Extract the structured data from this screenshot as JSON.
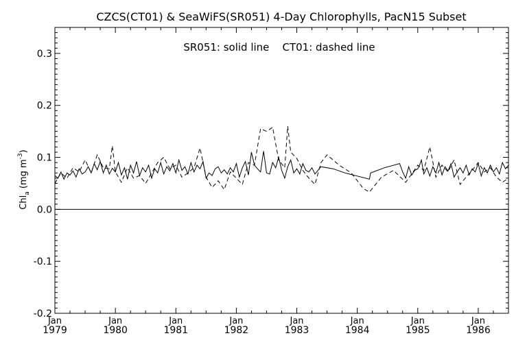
{
  "chart_data": {
    "type": "line",
    "title": "CZCS(CT01) & SeaWiFS(SR051) 4-Day Chlorophylls, PacN15 Subset",
    "annotation": "SR051: solid line    CT01: dashed line",
    "ylabel": {
      "base": "Chl",
      "subscript": "a",
      "units_open": " (mg m",
      "units_sup": "-3",
      "units_close": ")"
    },
    "xlim": [
      1979.0,
      1986.5
    ],
    "ylim": [
      -0.2,
      0.35
    ],
    "yticks": [
      "-0.2",
      "-0.1",
      "0.0",
      "0.1",
      "0.2",
      "0.3"
    ],
    "xticks": [
      {
        "x": 1979,
        "month": "Jan",
        "year": "1979"
      },
      {
        "x": 1980,
        "month": "Jan",
        "year": "1980"
      },
      {
        "x": 1981,
        "month": "Jan",
        "year": "1981"
      },
      {
        "x": 1982,
        "month": "Jan",
        "year": "1982"
      },
      {
        "x": 1983,
        "month": "Jan",
        "year": "1983"
      },
      {
        "x": 1984,
        "month": "Jan",
        "year": "1984"
      },
      {
        "x": 1985,
        "month": "Jan",
        "year": "1985"
      },
      {
        "x": 1986,
        "month": "Jan",
        "year": "1986"
      }
    ],
    "zero_line": 0.0,
    "series": [
      {
        "name": "SR051",
        "style": "solid",
        "color": "#000000",
        "x": [
          1979.0,
          1979.05,
          1979.1,
          1979.15,
          1979.2,
          1979.25,
          1979.3,
          1979.35,
          1979.4,
          1979.45,
          1979.5,
          1979.55,
          1979.6,
          1979.65,
          1979.7,
          1979.75,
          1979.8,
          1979.85,
          1979.9,
          1979.95,
          1980.0,
          1980.05,
          1980.1,
          1980.15,
          1980.2,
          1980.25,
          1980.3,
          1980.35,
          1980.4,
          1980.45,
          1980.5,
          1980.55,
          1980.6,
          1980.65,
          1980.7,
          1980.75,
          1980.8,
          1980.85,
          1980.9,
          1980.95,
          1981.0,
          1981.05,
          1981.1,
          1981.15,
          1981.2,
          1981.25,
          1981.3,
          1981.35,
          1981.4,
          1981.45,
          1981.5,
          1981.55,
          1981.6,
          1981.65,
          1981.7,
          1981.75,
          1981.8,
          1981.85,
          1981.9,
          1981.95,
          1982.0,
          1982.05,
          1982.1,
          1982.15,
          1982.2,
          1982.25,
          1982.3,
          1982.35,
          1982.4,
          1982.45,
          1982.5,
          1982.55,
          1982.6,
          1982.65,
          1982.7,
          1982.75,
          1982.8,
          1982.85,
          1982.9,
          1982.95,
          1983.0,
          1983.05,
          1983.1,
          1983.15,
          1983.2,
          1983.25,
          1983.3,
          1983.4,
          1983.6,
          1983.8,
          1984.0,
          1984.2,
          1984.22,
          1984.45,
          1984.7,
          1984.75,
          1984.8,
          1984.85,
          1984.9,
          1984.95,
          1985.0,
          1985.03,
          1985.06,
          1985.1,
          1985.15,
          1985.2,
          1985.25,
          1985.3,
          1985.35,
          1985.4,
          1985.45,
          1985.5,
          1985.55,
          1985.6,
          1985.65,
          1985.7,
          1985.75,
          1985.8,
          1985.85,
          1985.9,
          1985.95,
          1986.0,
          1986.05,
          1986.1,
          1986.15,
          1986.2,
          1986.25,
          1986.3,
          1986.35,
          1986.4,
          1986.45,
          1986.5
        ],
        "y": [
          0.065,
          0.06,
          0.072,
          0.058,
          0.07,
          0.066,
          0.074,
          0.062,
          0.078,
          0.068,
          0.072,
          0.082,
          0.07,
          0.088,
          0.076,
          0.092,
          0.07,
          0.085,
          0.068,
          0.079,
          0.072,
          0.09,
          0.066,
          0.08,
          0.058,
          0.085,
          0.07,
          0.092,
          0.065,
          0.08,
          0.072,
          0.085,
          0.06,
          0.078,
          0.07,
          0.09,
          0.068,
          0.082,
          0.074,
          0.088,
          0.07,
          0.095,
          0.075,
          0.082,
          0.068,
          0.09,
          0.072,
          0.085,
          0.078,
          0.092,
          0.06,
          0.07,
          0.065,
          0.078,
          0.082,
          0.07,
          0.076,
          0.068,
          0.08,
          0.072,
          0.088,
          0.062,
          0.08,
          0.092,
          0.066,
          0.11,
          0.085,
          0.078,
          0.072,
          0.112,
          0.07,
          0.068,
          0.09,
          0.08,
          0.1,
          0.075,
          0.06,
          0.082,
          0.095,
          0.07,
          0.078,
          0.068,
          0.088,
          0.075,
          0.072,
          0.08,
          0.068,
          0.082,
          0.078,
          0.07,
          0.064,
          0.058,
          0.07,
          0.08,
          0.088,
          0.072,
          0.06,
          0.082,
          0.066,
          0.075,
          0.078,
          0.085,
          0.095,
          0.068,
          0.08,
          0.064,
          0.082,
          0.07,
          0.09,
          0.066,
          0.082,
          0.074,
          0.088,
          0.062,
          0.072,
          0.08,
          0.07,
          0.085,
          0.066,
          0.078,
          0.072,
          0.088,
          0.064,
          0.08,
          0.07,
          0.085,
          0.072,
          0.08,
          0.068,
          0.09,
          0.078,
          0.085
        ]
      },
      {
        "name": "CT01",
        "style": "dashed",
        "color": "#000000",
        "x": [
          1979.0,
          1979.1,
          1979.2,
          1979.3,
          1979.4,
          1979.5,
          1979.6,
          1979.7,
          1979.8,
          1979.9,
          1979.95,
          1980.0,
          1980.1,
          1980.2,
          1980.3,
          1980.4,
          1980.5,
          1980.6,
          1980.7,
          1980.8,
          1980.9,
          1981.0,
          1981.1,
          1981.2,
          1981.3,
          1981.4,
          1981.5,
          1981.6,
          1981.7,
          1981.8,
          1981.9,
          1982.0,
          1982.1,
          1982.2,
          1982.3,
          1982.4,
          1982.5,
          1982.6,
          1982.7,
          1982.8,
          1982.85,
          1982.9,
          1983.0,
          1983.1,
          1983.2,
          1983.3,
          1983.4,
          1983.5,
          1983.7,
          1983.9,
          1984.1,
          1984.2,
          1984.4,
          1984.6,
          1984.8,
          1984.9,
          1985.0,
          1985.1,
          1985.2,
          1985.3,
          1985.4,
          1985.5,
          1985.6,
          1985.7,
          1985.8,
          1985.9,
          1986.0,
          1986.1,
          1986.2,
          1986.3,
          1986.4,
          1986.5
        ],
        "y": [
          0.05,
          0.07,
          0.06,
          0.08,
          0.072,
          0.095,
          0.07,
          0.105,
          0.08,
          0.078,
          0.122,
          0.072,
          0.052,
          0.08,
          0.06,
          0.065,
          0.05,
          0.07,
          0.09,
          0.1,
          0.078,
          0.085,
          0.062,
          0.07,
          0.08,
          0.118,
          0.062,
          0.042,
          0.055,
          0.038,
          0.072,
          0.06,
          0.048,
          0.09,
          0.085,
          0.155,
          0.15,
          0.158,
          0.095,
          0.08,
          0.16,
          0.11,
          0.098,
          0.075,
          0.06,
          0.048,
          0.09,
          0.105,
          0.085,
          0.07,
          0.04,
          0.033,
          0.062,
          0.075,
          0.052,
          0.068,
          0.085,
          0.075,
          0.12,
          0.062,
          0.085,
          0.072,
          0.095,
          0.048,
          0.062,
          0.075,
          0.09,
          0.072,
          0.08,
          0.062,
          0.052,
          0.06
        ]
      }
    ]
  }
}
